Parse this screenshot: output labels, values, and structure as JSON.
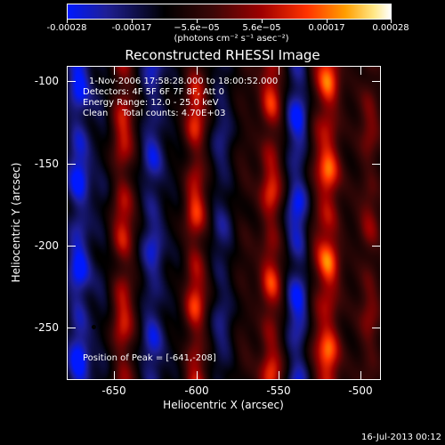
{
  "colorbar": {
    "ticks": [
      "-0.00028",
      "-0.00017",
      "−5.6e−05",
      "5.6e−05",
      "0.00017",
      "0.00028"
    ],
    "unit_label": "(photons cm⁻² s⁻¹ asec⁻²)",
    "colors": [
      "#0019ff",
      "#1f1f95",
      "#000000",
      "#3b0707",
      "#9e0000",
      "#ff3200",
      "#ff9e00",
      "#ffe98a",
      "#ffffff"
    ]
  },
  "chart_data": {
    "type": "heatmap",
    "title": "Reconstructed RHESSI Image",
    "xlabel": "Heliocentric X (arcsec)",
    "ylabel": "Heliocentric Y (arcsec)",
    "xlim": [
      -680,
      -489
    ],
    "ylim": [
      -282,
      -91
    ],
    "xticks": [
      -650,
      -600,
      -550,
      -500
    ],
    "yticks": [
      -100,
      -150,
      -200,
      -250
    ],
    "value_range": [
      -0.00028,
      0.00028
    ],
    "stripes": [
      {
        "x": -673,
        "amp": -0.8
      },
      {
        "x": -659,
        "amp": -0.2
      },
      {
        "x": -646,
        "amp": 0.85
      },
      {
        "x": -628,
        "amp": -0.6
      },
      {
        "x": -612,
        "amp": -0.1
      },
      {
        "x": -602,
        "amp": 0.95
      },
      {
        "x": -586,
        "amp": -0.4
      },
      {
        "x": -572,
        "amp": 0.2
      },
      {
        "x": -556,
        "amp": 0.9
      },
      {
        "x": -540,
        "amp": -0.75
      },
      {
        "x": -528,
        "amp": 0.3
      },
      {
        "x": -521,
        "amp": 1.0
      },
      {
        "x": -508,
        "amp": 0.1
      },
      {
        "x": -496,
        "amp": 0.55
      }
    ],
    "peak": {
      "x": -641,
      "y": -208
    }
  },
  "info": {
    "time_range": "1-Nov-2006 17:58:28.000 to 18:00:52.000",
    "detectors": "Detectors: 4F 5F 6F 7F 8F, Att 0",
    "energy": "Energy Range: 12.0 - 25.0 keV",
    "method": "Clean     Total counts: 4.70E+03",
    "peak_position": "Position of Peak = [-641,-208]"
  },
  "footer": {
    "timestamp": "16-Jul-2013 00:12"
  }
}
